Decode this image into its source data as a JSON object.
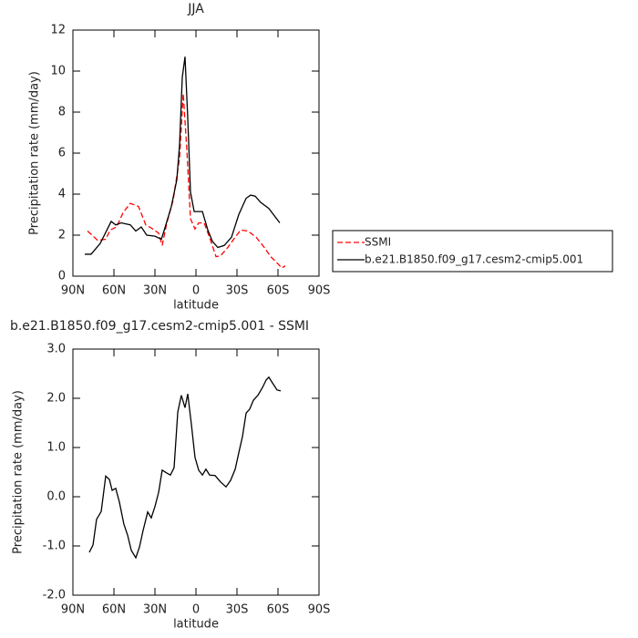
{
  "chart_data": [
    {
      "type": "line",
      "title": "JJA",
      "xlabel": "latitude",
      "ylabel": "Precipitation rate (mm/day)",
      "xlim": [
        90,
        -90
      ],
      "xticks": [
        {
          "value": 90,
          "label": "90N"
        },
        {
          "value": 60,
          "label": "60N"
        },
        {
          "value": 30,
          "label": "30N"
        },
        0,
        {
          "value": -30,
          "label": "30S"
        },
        {
          "value": -60,
          "label": "60S"
        },
        {
          "value": -90,
          "label": "90S"
        }
      ],
      "ylim": [
        0,
        12
      ],
      "yticks": [
        0,
        2,
        4,
        6,
        8,
        10,
        12
      ],
      "series": [
        {
          "name": "SSMI",
          "color": "#ff0000",
          "dashed": true,
          "x": [
            79.3,
            76,
            72,
            66,
            62.7,
            58,
            53.3,
            48,
            42,
            36.7,
            32.7,
            27.3,
            24.7,
            21.3,
            16.7,
            12,
            9.3,
            6.7,
            4,
            0.7,
            -2,
            -6,
            -10.7,
            -14.7,
            -18,
            -23.3,
            -28.7,
            -32.7,
            -38,
            -44,
            -50,
            -54.7,
            -60,
            -62.7,
            -65.3
          ],
          "values": [
            2.2,
            2.0,
            1.75,
            1.8,
            2.25,
            2.4,
            3.1,
            3.55,
            3.4,
            2.5,
            2.35,
            2.1,
            1.5,
            2.6,
            3.7,
            5.75,
            8.9,
            6.2,
            2.8,
            2.3,
            2.6,
            2.6,
            1.75,
            0.95,
            1.0,
            1.4,
            1.9,
            2.25,
            2.2,
            1.9,
            1.4,
            0.95,
            0.6,
            0.4,
            0.5
          ]
        },
        {
          "name": "b.e21.B1850.f09_g17.cesm2-cmip5.001",
          "color": "#000000",
          "dashed": false,
          "x": [
            81.3,
            76.7,
            70,
            62,
            58.7,
            54.7,
            48,
            44,
            40,
            36,
            30,
            25.3,
            22.7,
            18,
            14,
            12,
            10,
            8,
            6,
            4,
            1.3,
            -4.7,
            -8.7,
            -12,
            -16,
            -20.7,
            -26,
            -31.3,
            -36.7,
            -40,
            -43.3,
            -47.3,
            -53.3,
            -61.3
          ],
          "values": [
            1.07,
            1.07,
            1.6,
            2.67,
            2.5,
            2.6,
            2.5,
            2.2,
            2.4,
            2.0,
            1.95,
            1.8,
            2.35,
            3.4,
            4.7,
            6.4,
            9.7,
            10.7,
            7.7,
            4.1,
            3.15,
            3.15,
            2.25,
            1.7,
            1.4,
            1.5,
            1.9,
            3.0,
            3.8,
            3.95,
            3.9,
            3.6,
            3.3,
            2.6
          ]
        }
      ]
    },
    {
      "type": "line",
      "title": "b.e21.B1850.f09_g17.cesm2-cmip5.001 - SSMI",
      "xlabel": "latitude",
      "ylabel": "Precipitation rate (mm/day)",
      "xlim": [
        90,
        -90
      ],
      "xticks": [
        {
          "value": 90,
          "label": "90N"
        },
        {
          "value": 60,
          "label": "60N"
        },
        {
          "value": 30,
          "label": "30N"
        },
        0,
        {
          "value": -30,
          "label": "30S"
        },
        {
          "value": -60,
          "label": "60S"
        },
        {
          "value": -90,
          "label": "90S"
        }
      ],
      "ylim": [
        -2,
        3
      ],
      "yticks": [
        {
          "value": -2,
          "label": "-2.0"
        },
        {
          "value": -1,
          "label": "-1.0"
        },
        {
          "value": 0,
          "label": "0.0"
        },
        {
          "value": 1,
          "label": "1.0"
        },
        {
          "value": 2,
          "label": "2.0"
        },
        {
          "value": 3,
          "label": "3.0"
        }
      ],
      "series": [
        {
          "color": "#000000",
          "dashed": false,
          "x": [
            78,
            75.3,
            72.7,
            69.3,
            66,
            63.3,
            61.3,
            58.7,
            56,
            52.7,
            50,
            47.3,
            44,
            41.3,
            38.7,
            35.3,
            32.7,
            30,
            27.3,
            24.7,
            21.3,
            18.7,
            16,
            13.3,
            10.7,
            8,
            6,
            3.3,
            0.7,
            -2,
            -4.7,
            -7.3,
            -10,
            -14,
            -18,
            -22,
            -25.3,
            -28.7,
            -31.3,
            -34,
            -36.7,
            -39.3,
            -42,
            -45.3,
            -48.7,
            -51.3,
            -53.3,
            -56,
            -59.3,
            -62
          ],
          "values": [
            -1.13,
            -0.98,
            -0.46,
            -0.3,
            0.42,
            0.35,
            0.13,
            0.17,
            -0.11,
            -0.56,
            -0.78,
            -1.09,
            -1.24,
            -1.02,
            -0.69,
            -0.31,
            -0.43,
            -0.2,
            0.09,
            0.54,
            0.48,
            0.44,
            0.59,
            1.72,
            2.06,
            1.81,
            2.09,
            1.46,
            0.8,
            0.54,
            0.44,
            0.56,
            0.44,
            0.43,
            0.3,
            0.2,
            0.33,
            0.56,
            0.89,
            1.22,
            1.7,
            1.78,
            1.96,
            2.06,
            2.22,
            2.37,
            2.43,
            2.31,
            2.17,
            2.15
          ]
        }
      ]
    }
  ]
}
